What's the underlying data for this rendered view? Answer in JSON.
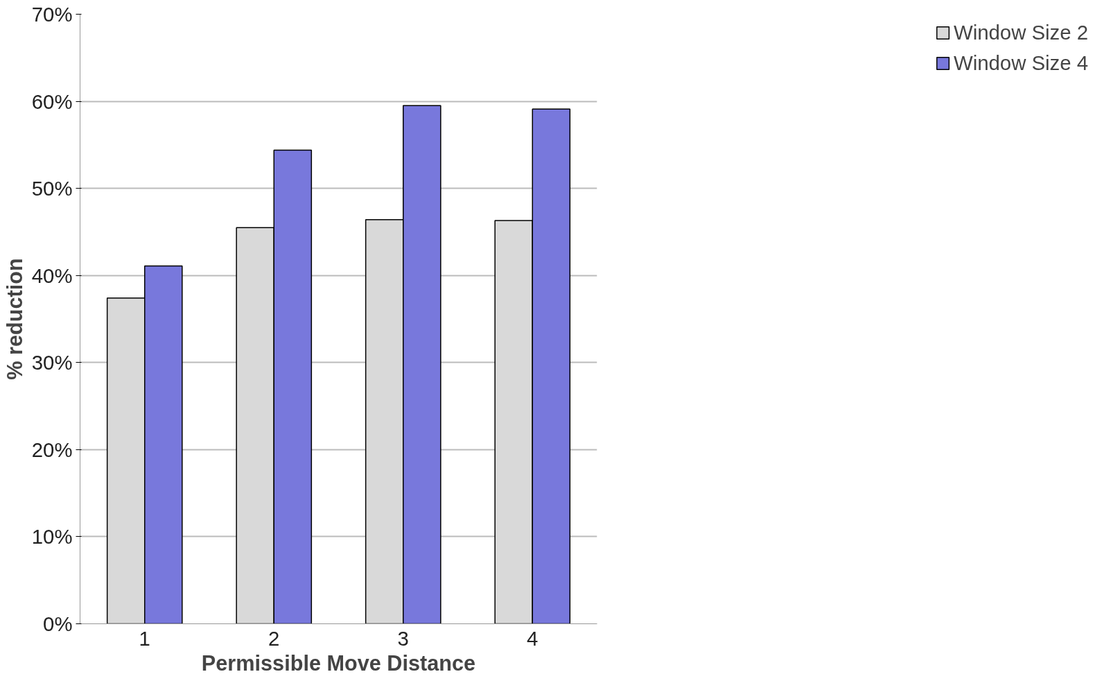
{
  "chart_data": {
    "type": "bar",
    "xlabel": "Permissible Move Distance",
    "ylabel": "% reduction",
    "categories": [
      "1",
      "2",
      "3",
      "4"
    ],
    "series": [
      {
        "name": "Window Size 2",
        "color": "#d9d9d9",
        "values": [
          37.4,
          45.5,
          46.4,
          46.3
        ]
      },
      {
        "name": "Window Size 4",
        "color": "#7878dc",
        "values": [
          41.1,
          54.4,
          59.5,
          59.1
        ]
      }
    ],
    "ylim": [
      0,
      70
    ],
    "yticks": [
      {
        "value": 0,
        "label": "0%"
      },
      {
        "value": 10,
        "label": "10%"
      },
      {
        "value": 20,
        "label": "20%"
      },
      {
        "value": 30,
        "label": "30%"
      },
      {
        "value": 40,
        "label": "40%"
      },
      {
        "value": 50,
        "label": "50%"
      },
      {
        "value": 60,
        "label": "60%"
      },
      {
        "value": 70,
        "label": "70%"
      }
    ],
    "grid": "y",
    "legend": "right"
  }
}
